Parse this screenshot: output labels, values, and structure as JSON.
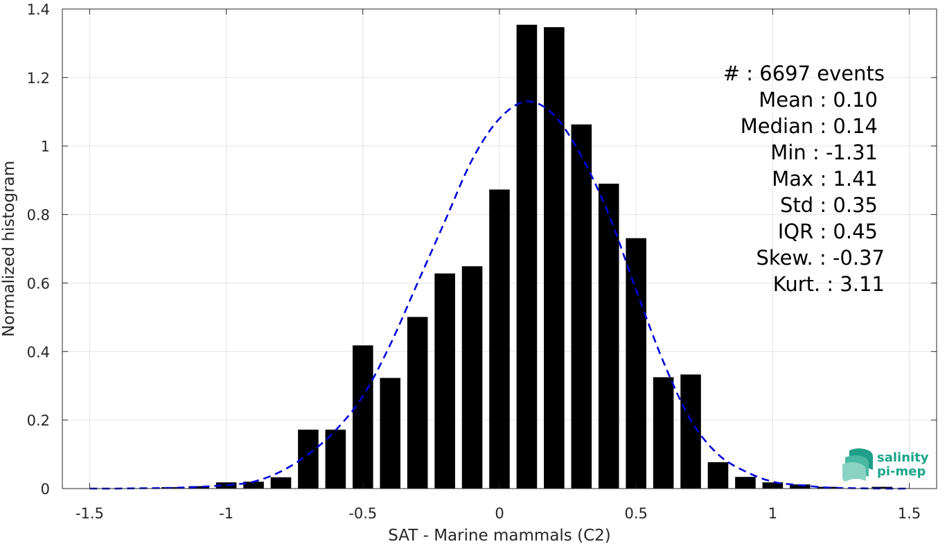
{
  "chart_data": {
    "type": "bar",
    "xlabel": "SAT - Marine mammals (C2)",
    "ylabel": "Normalized histogram",
    "xlim": [
      -1.6,
      1.6
    ],
    "ylim": [
      0,
      1.4
    ],
    "xticks": [
      "-1.5",
      "-1",
      "-0.5",
      "0",
      "0.5",
      "1",
      "1.5"
    ],
    "xtick_values": [
      -1.5,
      -1,
      -0.5,
      0,
      0.5,
      1,
      1.5
    ],
    "yticks": [
      "0",
      "0.2",
      "0.4",
      "0.6",
      "0.8",
      "1",
      "1.2",
      "1.4"
    ],
    "ytick_values": [
      0,
      0.2,
      0.4,
      0.6,
      0.8,
      1,
      1.2,
      1.4
    ],
    "grid": true,
    "bar_width": 0.075,
    "bar_color": "#000000",
    "bins": [
      {
        "x": -1.5,
        "y": 0.0
      },
      {
        "x": -1.4,
        "y": 0.0
      },
      {
        "x": -1.3,
        "y": 0.0
      },
      {
        "x": -1.2,
        "y": 0.004
      },
      {
        "x": -1.1,
        "y": 0.007
      },
      {
        "x": -1.0,
        "y": 0.018
      },
      {
        "x": -0.9,
        "y": 0.02
      },
      {
        "x": -0.8,
        "y": 0.033
      },
      {
        "x": -0.7,
        "y": 0.172
      },
      {
        "x": -0.6,
        "y": 0.172
      },
      {
        "x": -0.5,
        "y": 0.418
      },
      {
        "x": -0.4,
        "y": 0.323
      },
      {
        "x": -0.3,
        "y": 0.501
      },
      {
        "x": -0.2,
        "y": 0.628
      },
      {
        "x": -0.1,
        "y": 0.649
      },
      {
        "x": 0.0,
        "y": 0.873
      },
      {
        "x": 0.1,
        "y": 1.354
      },
      {
        "x": 0.2,
        "y": 1.347
      },
      {
        "x": 0.3,
        "y": 1.063
      },
      {
        "x": 0.4,
        "y": 0.89
      },
      {
        "x": 0.5,
        "y": 0.731
      },
      {
        "x": 0.6,
        "y": 0.325
      },
      {
        "x": 0.7,
        "y": 0.333
      },
      {
        "x": 0.8,
        "y": 0.077
      },
      {
        "x": 0.9,
        "y": 0.034
      },
      {
        "x": 1.0,
        "y": 0.018
      },
      {
        "x": 1.1,
        "y": 0.012
      },
      {
        "x": 1.2,
        "y": 0.005
      },
      {
        "x": 1.3,
        "y": 0.0
      },
      {
        "x": 1.4,
        "y": 0.005
      },
      {
        "x": 1.5,
        "y": 0.0
      }
    ],
    "fit_curve": {
      "style": "dashed",
      "color": "#0000dd",
      "x": [
        -1.5,
        -1.4,
        -1.3,
        -1.2,
        -1.1,
        -1.0,
        -0.9,
        -0.8,
        -0.7,
        -0.6,
        -0.5,
        -0.4,
        -0.3,
        -0.2,
        -0.1,
        0.0,
        0.1,
        0.2,
        0.3,
        0.4,
        0.5,
        0.6,
        0.7,
        0.8,
        0.9,
        1.0,
        1.1,
        1.2,
        1.3,
        1.4,
        1.5
      ],
      "y": [
        0.0,
        0.0,
        0.001,
        0.002,
        0.005,
        0.01,
        0.02,
        0.05,
        0.1,
        0.17,
        0.27,
        0.42,
        0.6,
        0.78,
        0.96,
        1.08,
        1.13,
        1.09,
        0.97,
        0.8,
        0.58,
        0.37,
        0.2,
        0.1,
        0.05,
        0.02,
        0.01,
        0.003,
        0.001,
        0.0,
        0.0
      ]
    },
    "stats": [
      "#  : 6697 events",
      "Mean : 0.10",
      "Median : 0.14",
      "Min : -1.31",
      "Max : 1.41",
      "Std : 0.35",
      "IQR : 0.45",
      "Skew. : -0.37",
      "Kurt. : 3.11"
    ]
  },
  "logo": {
    "line1": "salinity",
    "line2": "pi-mep"
  }
}
